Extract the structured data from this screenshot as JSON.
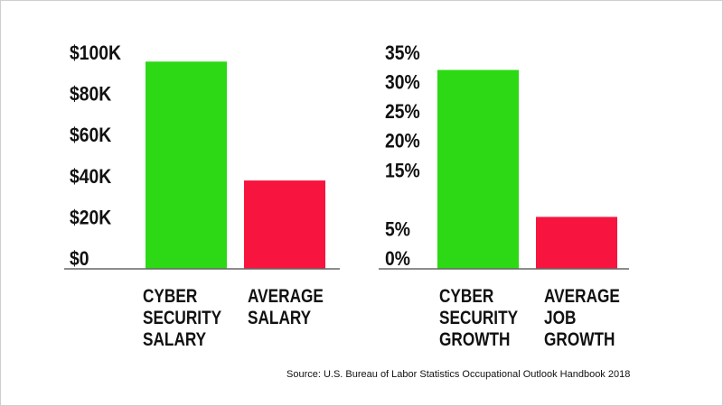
{
  "chart_data": [
    {
      "type": "bar",
      "title": "",
      "categories": [
        [
          "CYBER",
          "SECURITY",
          "SALARY"
        ],
        [
          "AVERAGE",
          "SALARY"
        ]
      ],
      "values": [
        95.5,
        37.7
      ],
      "value_unit": "thousand USD",
      "colors": [
        "#2cd914",
        "#f7153f"
      ],
      "yticks": [
        0,
        20,
        40,
        60,
        80,
        100
      ],
      "ytick_labels": [
        "$0",
        "$20K",
        "$40K",
        "$60K",
        "$80K",
        "$100K"
      ],
      "ylim": [
        0,
        100
      ],
      "grid": false
    },
    {
      "type": "bar",
      "title": "",
      "categories": [
        [
          "CYBER",
          "SECURITY",
          "GROWTH"
        ],
        [
          "AVERAGE",
          "JOB",
          "GROWTH"
        ]
      ],
      "values": [
        32,
        7
      ],
      "value_unit": "percent",
      "colors": [
        "#2cd914",
        "#f7153f"
      ],
      "yticks": [
        0,
        5,
        15,
        20,
        25,
        30,
        35
      ],
      "ytick_labels": [
        "0%",
        "5%",
        "15%",
        "20%",
        "25%",
        "30%",
        "35%"
      ],
      "ylim": [
        0,
        35
      ],
      "grid": false
    }
  ],
  "source": "Source: U.S. Bureau of Labor Statistics Occupational Outlook Handbook 2018"
}
